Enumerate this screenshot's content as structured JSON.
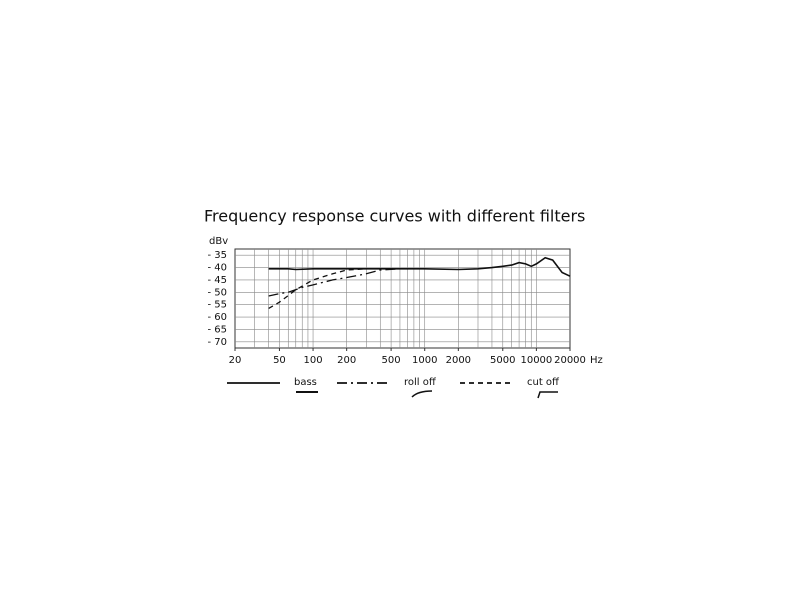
{
  "chart_data": {
    "type": "line",
    "title": "Frequency response curves with different filters",
    "y_label": "dBv",
    "x_unit": "Hz",
    "log_x": true,
    "grid": true,
    "xlim": [
      20,
      20000
    ],
    "xticks": [
      20,
      50,
      100,
      200,
      500,
      1000,
      2000,
      5000,
      10000,
      20000
    ],
    "xgrid": [
      30,
      40,
      50,
      60,
      70,
      80,
      90,
      100,
      200,
      300,
      400,
      500,
      600,
      700,
      800,
      900,
      1000,
      2000,
      3000,
      4000,
      5000,
      6000,
      7000,
      8000,
      9000,
      10000
    ],
    "ylim": [
      -72.5,
      -32.5
    ],
    "yticks": [
      {
        "value": -35,
        "label": "- 35"
      },
      {
        "value": -40,
        "label": "- 40"
      },
      {
        "value": -45,
        "label": "- 45"
      },
      {
        "value": -50,
        "label": "- 50"
      },
      {
        "value": -55,
        "label": "- 55"
      },
      {
        "value": -60,
        "label": "- 60"
      },
      {
        "value": -65,
        "label": "- 65"
      },
      {
        "value": -70,
        "label": "- 70"
      }
    ],
    "series": [
      {
        "name": "bass",
        "color": "#111111",
        "dash": "solid",
        "x": [
          40,
          60,
          70,
          100,
          200,
          500,
          1000,
          2000,
          3000,
          4000,
          5000,
          6000,
          7000,
          8000,
          9000,
          10000,
          12000,
          14000,
          17000,
          20000
        ],
        "values": [
          -40.5,
          -40.5,
          -40.8,
          -40.5,
          -40.5,
          -40.5,
          -40.5,
          -40.8,
          -40.5,
          -40,
          -39.5,
          -39,
          -38,
          -38.5,
          -39.5,
          -38.5,
          -36,
          -37,
          -42,
          -43.5
        ]
      },
      {
        "name": "roll off",
        "color": "#111111",
        "dash": "dashdot",
        "x": [
          40,
          50,
          60,
          80,
          100,
          150,
          200,
          300,
          400,
          600
        ],
        "values": [
          -51.5,
          -50.5,
          -50,
          -48,
          -47,
          -45,
          -44,
          -42.5,
          -41,
          -40.5
        ]
      },
      {
        "name": "cut off",
        "color": "#111111",
        "dash": "dashed",
        "x": [
          40,
          50,
          70,
          100,
          150,
          200,
          300,
          500
        ],
        "values": [
          -56.5,
          -54,
          -49,
          -45,
          -42.5,
          -41,
          -40.5,
          -40.5
        ]
      }
    ]
  }
}
